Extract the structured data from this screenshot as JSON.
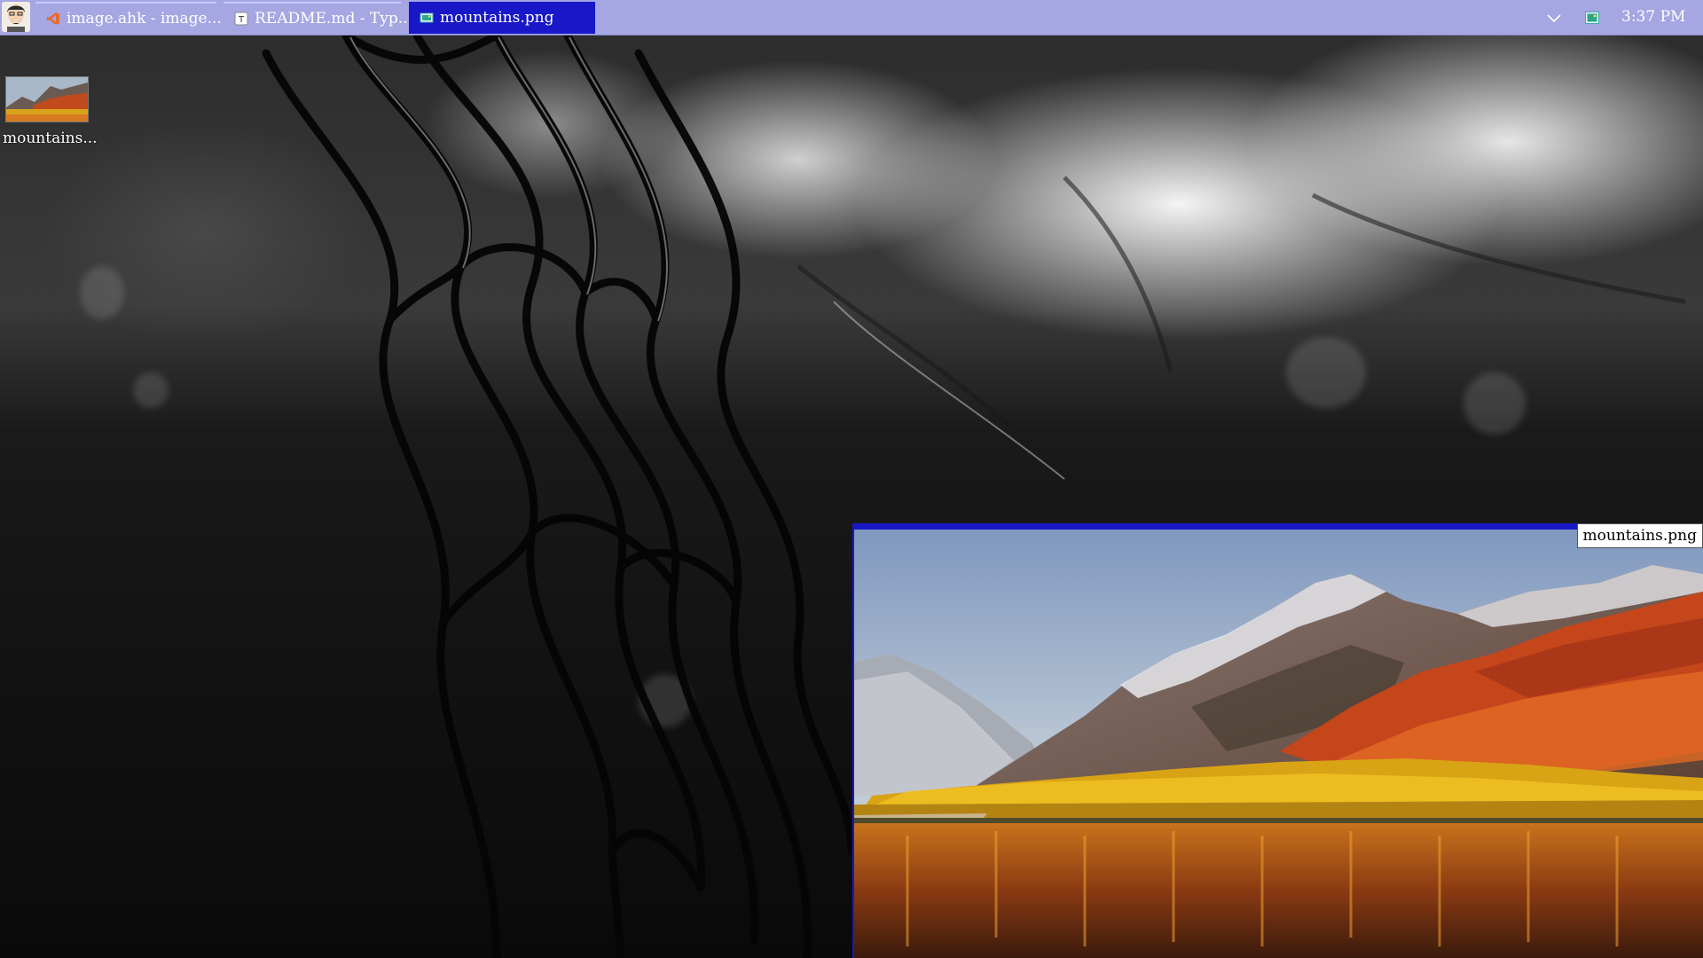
{
  "taskbar": {
    "start_button": "user-avatar",
    "tasks": [
      {
        "label": "image.ahk - image...",
        "icon": "visual-studio-code-icon",
        "active": false
      },
      {
        "label": "README.md - Typ...",
        "icon": "typora-icon",
        "active": false
      },
      {
        "label": "mountains.png",
        "icon": "image-viewer-icon",
        "active": true
      }
    ],
    "tray": {
      "chevron": "chevron-down-icon",
      "app_icon": "image-viewer-icon"
    },
    "clock": "3:37 PM"
  },
  "desktop": {
    "wallpaper": "black-and-white chain-link fence photo",
    "icons": [
      {
        "label": "mountains...",
        "type": "png-thumbnail"
      }
    ]
  },
  "viewer": {
    "title": "mountains.png",
    "image": "autumn mountain lake landscape"
  },
  "colors": {
    "taskbar_bg": "#a6a6e3",
    "active_task_bg": "#1818c8",
    "window_accent": "#1818c8",
    "text_on_taskbar": "#ffffff"
  }
}
